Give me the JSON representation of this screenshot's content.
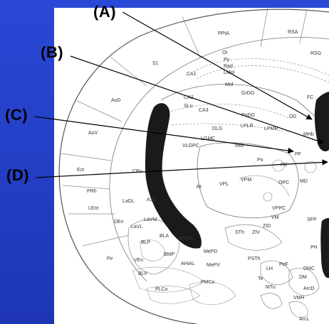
{
  "callouts": {
    "a": "(A)",
    "b": "(B)",
    "c": "(C)",
    "d": "(D)"
  },
  "regions": {
    "ppta": "PPtA",
    "rsa": "RSA",
    "rsg": "RSG",
    "s1": "S1",
    "aud": "AuD",
    "auv": "AuV",
    "ect": "Ect",
    "prh": "PRh",
    "lent": "LEnt",
    "pir": "Pir",
    "ca1": "CA1",
    "ca2": "CA2",
    "ca3": "CA3",
    "slu": "SLu",
    "or": "Or",
    "py": "Py",
    "rad": "Rad",
    "lmol": "LMol",
    "mol": "Mol",
    "grdg": "GrDG",
    "podg": "PoDG",
    "dg": "DG",
    "fc": "FC",
    "mhb": "MHb",
    "dlg": "DLG",
    "lplr": "LPLR",
    "lpmr": "LPMR",
    "lgmc": "LGMC",
    "vlgpc": "VLGPC",
    "ima": "IMA",
    "pf": "PF",
    "po": "Po",
    "pc": "PC",
    "rt": "Rt",
    "vpl": "VPL",
    "vpm": "VPM",
    "opc": "OPC",
    "md": "MD",
    "cpu": "CPu",
    "ladl": "LaDL",
    "astr": "AStr",
    "lavm": "LaVM",
    "lavl": "LaVL",
    "den": "DEn",
    "bla": "BLA",
    "blp": "BLP",
    "bstia": "BSTIA",
    "bmp": "BMP",
    "mepd": "MePD",
    "ahial": "AHiAL",
    "mepv": "MePV",
    "ven": "VEn",
    "blv": "BLV",
    "plco": "PLCo",
    "pmco": "PMCo",
    "vppc": "VPPC",
    "vm": "VM",
    "zid": "ZID",
    "ziv": "ZIV",
    "sth": "STh",
    "psth": "PSTh",
    "sfp": "SFP",
    "ph": "PH",
    "lh": "LH",
    "pef": "PeF",
    "dmc": "DMC",
    "dm": "DM",
    "arcd": "ArcD",
    "vmh": "VMH",
    "arcl": "ArcL",
    "mtu": "MTu",
    "te": "Te"
  },
  "colors": {
    "background": "#2440c8",
    "atlas": "#ffffff",
    "outline": "#555555",
    "ventricle": "#1a1a1a",
    "callout_text": "#000000"
  }
}
